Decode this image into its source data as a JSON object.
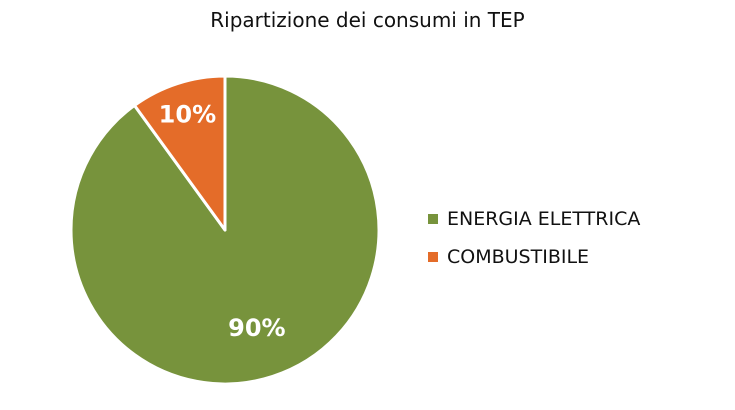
{
  "chart_data": {
    "type": "pie",
    "title": "Ripartizione dei consumi in TEP",
    "categories": [
      "ENERGIA ELETTRICA",
      "COMBUSTIBILE"
    ],
    "values": [
      90,
      10
    ],
    "data_labels": [
      "90%",
      "10%"
    ],
    "colors": [
      "#77933c",
      "#e46c29"
    ],
    "legend_position": "right",
    "start_angle": "12 o'clock, clockwise"
  }
}
